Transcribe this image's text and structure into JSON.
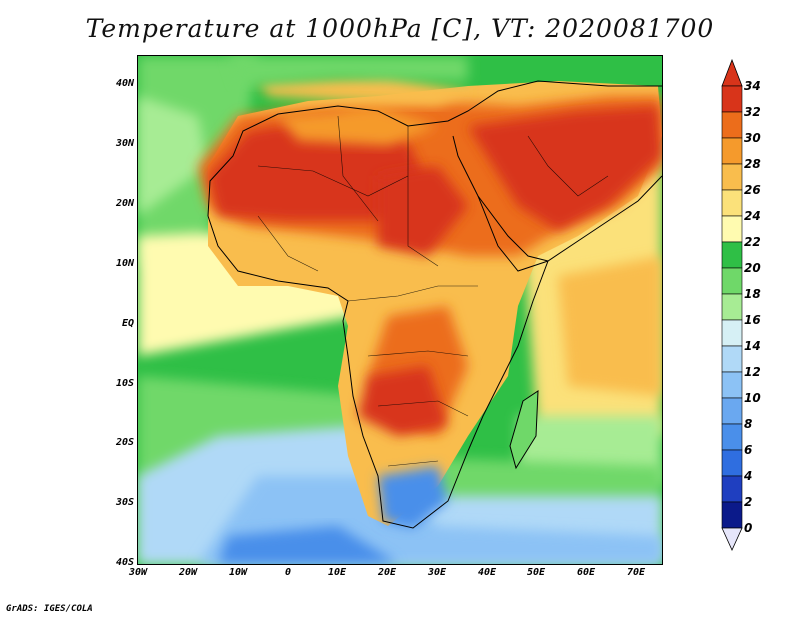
{
  "title": "Temperature at 1000hPa [C], VT: 2020081700",
  "credit": "GrADS: IGES/COLA",
  "chart_data": {
    "type": "heatmap",
    "title": "Temperature at 1000hPa [C], VT: 2020081700",
    "variable": "Temperature at 1000hPa",
    "units": "C",
    "valid_time": "2020081700",
    "x_ticks": [
      "30W",
      "20W",
      "10W",
      "0",
      "10E",
      "20E",
      "30E",
      "40E",
      "50E",
      "60E",
      "70E"
    ],
    "y_ticks": [
      "40N",
      "30N",
      "20N",
      "10N",
      "EQ",
      "10S",
      "20S",
      "30S",
      "40S"
    ],
    "lon_range": [
      -30,
      75
    ],
    "lat_range": [
      -40,
      45
    ],
    "colorbar": {
      "levels": [
        0,
        2,
        4,
        6,
        8,
        10,
        12,
        14,
        16,
        18,
        20,
        22,
        24,
        26,
        28,
        30,
        32,
        34
      ],
      "colors": [
        "#0b1a8a",
        "#1f3fc0",
        "#2f6ee0",
        "#4a8fea",
        "#6aa8f0",
        "#8cc2f5",
        "#b0d9f7",
        "#d6f0f5",
        "#a7ec94",
        "#6fd869",
        "#2fbf46",
        "#fffbb0",
        "#fbe17a",
        "#f9bd4d",
        "#f59a2c",
        "#ec6d1b",
        "#d8341a"
      ]
    }
  }
}
